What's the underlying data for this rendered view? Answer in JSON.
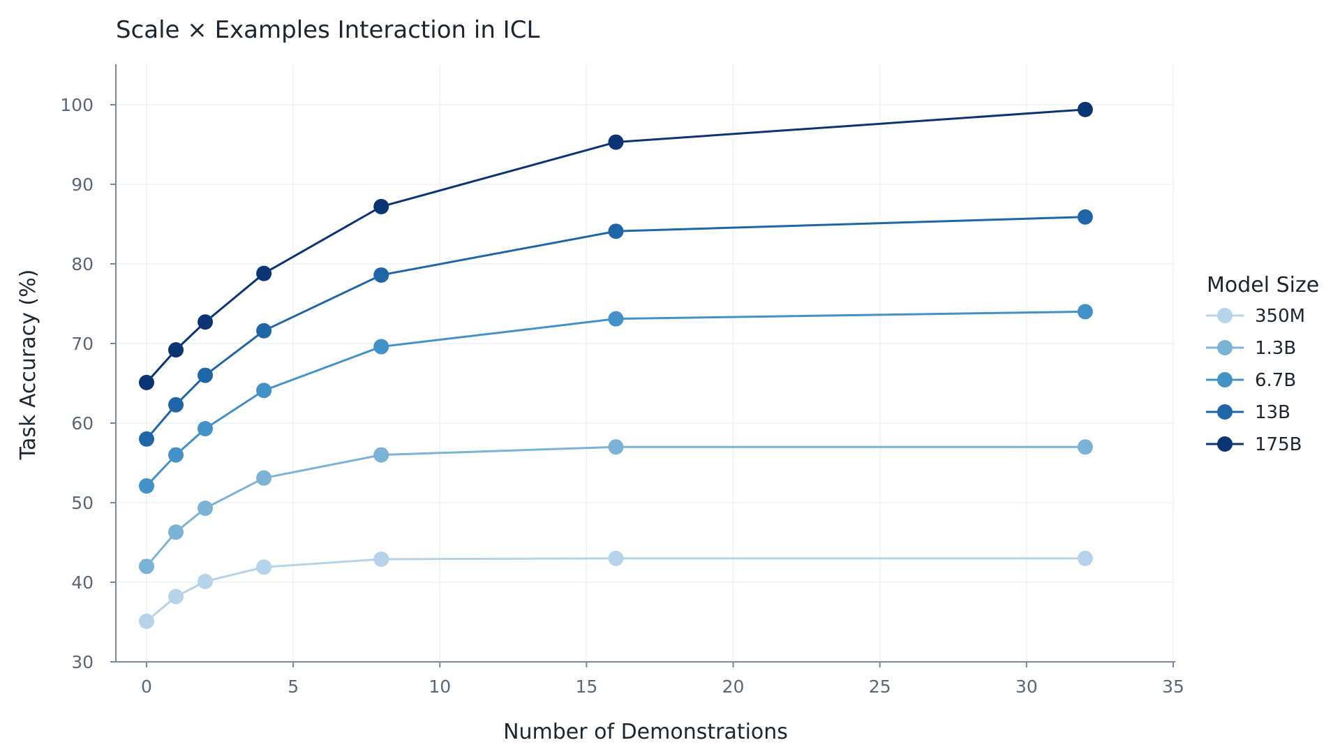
{
  "chart_data": {
    "type": "line",
    "title": "Scale × Examples Interaction in ICL",
    "xlabel": "Number of Demonstrations",
    "ylabel": "Task Accuracy (%)",
    "xlim": [
      -1,
      35
    ],
    "ylim": [
      30,
      105
    ],
    "xticks": [
      0,
      5,
      10,
      15,
      20,
      25,
      30,
      35
    ],
    "yticks": [
      30,
      40,
      50,
      60,
      70,
      80,
      90,
      100
    ],
    "grid": true,
    "legend": {
      "title": "Model Size",
      "placement": "right"
    },
    "x": [
      0,
      1,
      2,
      4,
      8,
      16,
      32
    ],
    "series": [
      {
        "name": "350M",
        "color": "#b7d3e9",
        "values": [
          35.1,
          38.2,
          40.1,
          41.9,
          42.9,
          43.0,
          43.0
        ]
      },
      {
        "name": "1.3B",
        "color": "#7bb3d6",
        "values": [
          42.0,
          46.3,
          49.3,
          53.1,
          56.0,
          57.0,
          57.0
        ]
      },
      {
        "name": "6.7B",
        "color": "#4291c7",
        "values": [
          52.1,
          56.0,
          59.3,
          64.1,
          69.6,
          73.1,
          74.0
        ]
      },
      {
        "name": "13B",
        "color": "#1f66a8",
        "values": [
          58.0,
          62.3,
          66.0,
          71.6,
          78.6,
          84.1,
          85.9
        ]
      },
      {
        "name": "175B",
        "color": "#0b3473",
        "values": [
          65.1,
          69.2,
          72.7,
          78.8,
          87.2,
          95.3,
          99.4
        ]
      }
    ]
  }
}
